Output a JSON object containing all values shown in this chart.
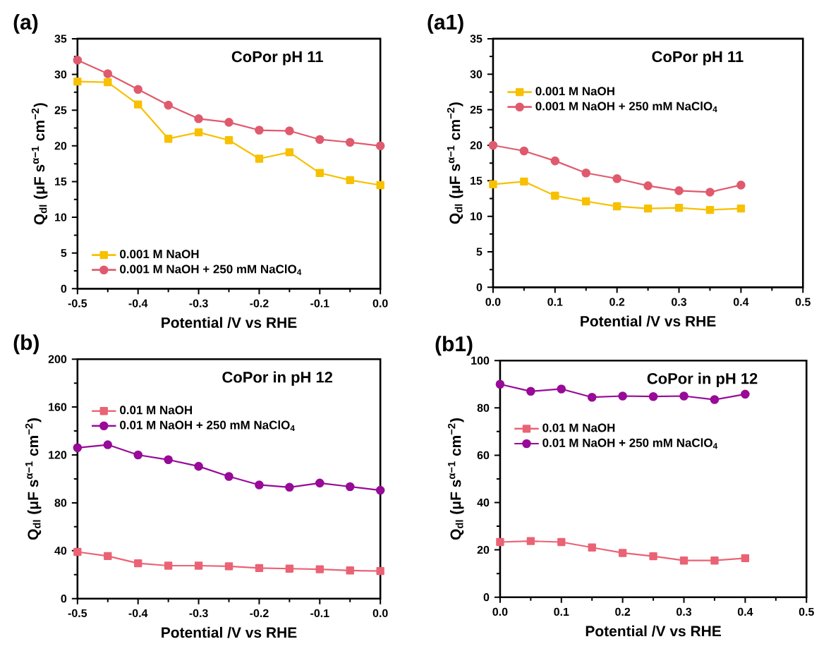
{
  "chart_data": [
    {
      "type": "line",
      "title": "(a)",
      "xlabel": "Potential /V vs RHE",
      "ylabel": "Q$_{dl}$ (μF s$^{α−1}$ cm$^{−2}$)",
      "annotations": [
        "CoPor pH 11"
      ],
      "legend": "bottom left",
      "x": [
        -0.5,
        -0.45,
        -0.4,
        -0.35,
        -0.3,
        -0.25,
        -0.2,
        -0.15,
        -0.1,
        -0.05,
        0.0
      ],
      "xlim": [
        -0.5,
        0.0
      ],
      "xticks": [
        {
          "value": -0.5,
          "label": "-0.5"
        },
        {
          "value": -0.4,
          "label": "-0.4"
        },
        {
          "value": -0.3,
          "label": "-0.3"
        },
        {
          "value": -0.2,
          "label": "-0.2"
        },
        {
          "value": -0.1,
          "label": "-0.1"
        },
        {
          "value": 0.0,
          "label": "0.0"
        }
      ],
      "ylim": [
        0,
        35
      ],
      "yticks": [
        0,
        5,
        10,
        15,
        20,
        25,
        30,
        35
      ],
      "series": [
        {
          "name": "0.001 M NaOH",
          "color": "#f7c000",
          "marker": "square",
          "values": [
            29,
            28.9,
            25.8,
            21,
            21.9,
            20.8,
            18.2,
            19.1,
            16.2,
            15.2,
            14.5
          ]
        },
        {
          "name": "0.001 M NaOH + 250 mM NaClO$_{4}$",
          "color": "#e05a6e",
          "marker": "circle",
          "values": [
            32,
            30.1,
            27.9,
            25.7,
            23.8,
            23.3,
            22.2,
            22.1,
            20.9,
            20.5,
            20
          ]
        }
      ]
    },
    {
      "type": "line",
      "title": "(a1)",
      "xlabel": "Potential /V vs RHE",
      "ylabel": "Q$_{dl}$ (μF s$^{α−1}$ cm$^{−2}$)",
      "annotations": [
        "CoPor pH 11"
      ],
      "legend": "top left",
      "x": [
        0.0,
        0.05,
        0.1,
        0.15,
        0.2,
        0.25,
        0.3,
        0.35,
        0.4
      ],
      "xlim": [
        0.0,
        0.5
      ],
      "xticks": [
        {
          "value": 0.0,
          "label": "0.0"
        },
        {
          "value": 0.1,
          "label": "0.1"
        },
        {
          "value": 0.2,
          "label": "0.2"
        },
        {
          "value": 0.3,
          "label": "0.3"
        },
        {
          "value": 0.4,
          "label": "0.4"
        },
        {
          "value": 0.5,
          "label": "0.5"
        }
      ],
      "ylim": [
        0,
        35
      ],
      "yticks": [
        0,
        5,
        10,
        15,
        20,
        25,
        30,
        35
      ],
      "series": [
        {
          "name": "0.001 M NaOH",
          "color": "#f7c000",
          "marker": "square",
          "values": [
            14.5,
            14.9,
            12.9,
            12.1,
            11.4,
            11.1,
            11.2,
            10.9,
            11.1
          ]
        },
        {
          "name": "0.001 M NaOH + 250 mM NaClO$_{4}$",
          "color": "#e05a6e",
          "marker": "circle",
          "values": [
            20,
            19.2,
            17.8,
            16.1,
            15.3,
            14.3,
            13.6,
            13.4,
            14.4
          ]
        }
      ]
    },
    {
      "type": "line",
      "title": "(b)",
      "xlabel": "Potential /V vs RHE",
      "ylabel": "Q$_{dl}$ (μF s$^{α−1}$ cm$^{−2}$)",
      "annotations": [
        "CoPor in pH 12"
      ],
      "legend": "top left",
      "x": [
        -0.5,
        -0.45,
        -0.4,
        -0.35,
        -0.3,
        -0.25,
        -0.2,
        -0.15,
        -0.1,
        -0.05,
        0.0
      ],
      "xlim": [
        -0.5,
        0.0
      ],
      "xticks": [
        {
          "value": -0.5,
          "label": "-0.5"
        },
        {
          "value": -0.4,
          "label": "-0.4"
        },
        {
          "value": -0.3,
          "label": "-0.3"
        },
        {
          "value": -0.2,
          "label": "-0.2"
        },
        {
          "value": -0.1,
          "label": "-0.1"
        },
        {
          "value": 0.0,
          "label": "0.0"
        }
      ],
      "ylim": [
        0,
        200
      ],
      "yticks": [
        0,
        40,
        80,
        120,
        160,
        200
      ],
      "series": [
        {
          "name": "0.01 M NaOH",
          "color": "#ea6375",
          "marker": "square",
          "values": [
            39,
            35.5,
            29.5,
            27.5,
            27.5,
            27,
            25.5,
            25,
            24.5,
            23.5,
            23
          ]
        },
        {
          "name": "0.01 M NaOH + 250 mM NaClO$_{4}$",
          "color": "#980a98",
          "marker": "circle",
          "values": [
            126,
            128.5,
            120,
            116,
            110.5,
            102,
            95,
            93,
            96.5,
            93.5,
            90.5
          ]
        }
      ]
    },
    {
      "type": "line",
      "title": "(b1)",
      "xlabel": "Potential /V vs RHE",
      "ylabel": "Q$_{dl}$ (μF s$^{α−1}$ cm$^{−2}$)",
      "annotations": [
        "CoPor in pH 12"
      ],
      "legend": "left",
      "x": [
        0.0,
        0.05,
        0.1,
        0.15,
        0.2,
        0.25,
        0.3,
        0.35,
        0.4
      ],
      "xlim": [
        0.0,
        0.5
      ],
      "xticks": [
        {
          "value": 0.0,
          "label": "0.0"
        },
        {
          "value": 0.1,
          "label": "0.1"
        },
        {
          "value": 0.2,
          "label": "0.2"
        },
        {
          "value": 0.3,
          "label": "0.3"
        },
        {
          "value": 0.4,
          "label": "0.4"
        },
        {
          "value": 0.5,
          "label": "0.5"
        }
      ],
      "ylim": [
        0,
        100
      ],
      "yticks": [
        0,
        20,
        40,
        60,
        80,
        100
      ],
      "series": [
        {
          "name": "0.01 M NaOH",
          "color": "#ea6375",
          "marker": "square",
          "values": [
            23.3,
            23.7,
            23.3,
            21,
            18.7,
            17.3,
            15.5,
            15.5,
            16.5
          ]
        },
        {
          "name": "0.01 M NaOH + 250 mM NaClO$_{4}$",
          "color": "#980a98",
          "marker": "circle",
          "values": [
            90,
            87,
            88,
            84.5,
            85,
            84.8,
            85,
            83.5,
            85.8
          ]
        }
      ]
    }
  ]
}
